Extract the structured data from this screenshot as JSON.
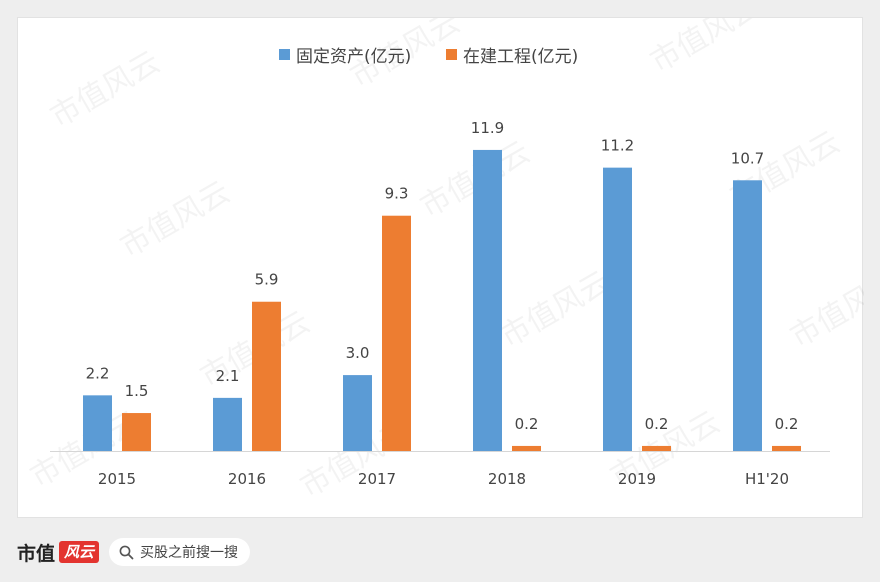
{
  "chart_data": {
    "type": "bar",
    "categories": [
      "2015",
      "2016",
      "2017",
      "2018",
      "2019",
      "H1'20"
    ],
    "series": [
      {
        "name": "固定资产(亿元)",
        "values": [
          2.2,
          2.1,
          3.0,
          11.9,
          11.2,
          10.7
        ],
        "color": "#5b9bd5"
      },
      {
        "name": "在建工程(亿元)",
        "values": [
          1.5,
          5.9,
          9.3,
          0.2,
          0.2,
          0.2
        ],
        "color": "#ed7d31"
      }
    ],
    "data_labels": [
      [
        "2.2",
        "2.1",
        "3.0",
        "11.9",
        "11.2",
        "10.7"
      ],
      [
        "1.5",
        "5.9",
        "9.3",
        "0.2",
        "0.2",
        "0.2"
      ]
    ],
    "ylim": [
      0,
      12
    ],
    "grid": false,
    "legend_position": "top"
  },
  "watermark": "市值风云",
  "footer": {
    "brand": "市值",
    "brand_mark": "风云",
    "search_icon": "search-icon",
    "search_text": "买股之前搜一搜"
  }
}
